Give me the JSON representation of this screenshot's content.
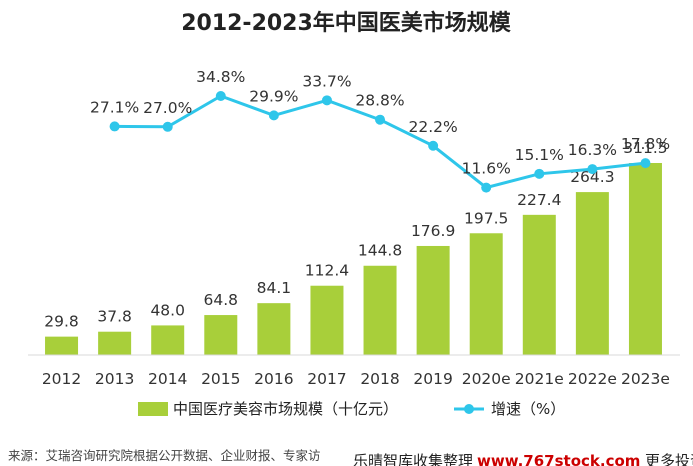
{
  "chart_data": {
    "type": "bar",
    "title": "2012-2023年中国医美市场规模",
    "categories": [
      "2012",
      "2013",
      "2014",
      "2015",
      "2016",
      "2017",
      "2018",
      "2019",
      "2020e",
      "2021e",
      "2022e",
      "2023e"
    ],
    "series": [
      {
        "name": "中国医疗美容市场规模（十亿元）",
        "type": "bar",
        "color": "#a8cf3a",
        "values": [
          29.8,
          37.8,
          48.0,
          64.8,
          84.1,
          112.4,
          144.8,
          176.9,
          197.5,
          227.4,
          264.3,
          311.5
        ],
        "labels": [
          "29.8",
          "37.8",
          "48.0",
          "64.8",
          "84.1",
          "112.4",
          "144.8",
          "176.9",
          "197.5",
          "227.4",
          "264.3",
          "311.5"
        ]
      },
      {
        "name": "增速（%）",
        "type": "line",
        "color": "#2ec6ea",
        "x": [
          "2013",
          "2014",
          "2015",
          "2016",
          "2017",
          "2018",
          "2019",
          "2020e",
          "2021e",
          "2022e",
          "2023e"
        ],
        "values": [
          27.1,
          27.0,
          34.8,
          29.9,
          33.7,
          28.8,
          22.2,
          11.6,
          15.1,
          16.3,
          17.8
        ],
        "labels": [
          "27.1%",
          "27.0%",
          "34.8%",
          "29.9%",
          "33.7%",
          "28.8%",
          "22.2%",
          "11.6%",
          "15.1%",
          "16.3%",
          "17.8%"
        ]
      }
    ],
    "ylim": [
      0,
      330
    ],
    "ylim_rate": [
      0,
      40
    ],
    "grid": false,
    "legend_position": "bottom"
  },
  "source": "来源：艾瑞咨询研究院根据公开数据、企业财报、专家访",
  "watermark": {
    "prefix": "乐晴智库收集整理",
    "brand": "www.767stock.com",
    "suffix": "更多投资"
  }
}
